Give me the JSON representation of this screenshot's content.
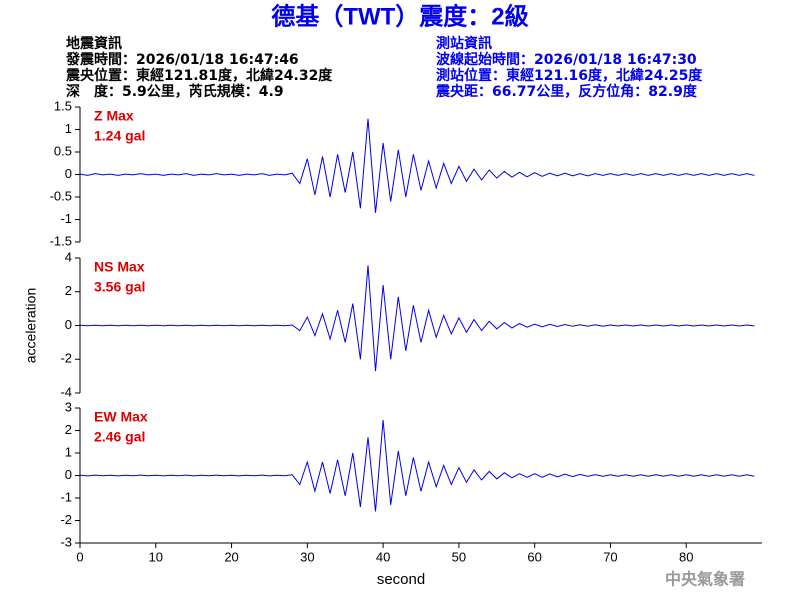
{
  "header": {
    "title": "德基（TWT）震度：2級",
    "event": [
      "地震資訊",
      "發震時間：2026/01/18 16:47:46",
      "震央位置：東經121.81度，北緯24.32度",
      "深　度：5.9公里，芮氏規模：4.9"
    ],
    "station": [
      "測站資訊",
      "波線起始時間：2026/01/18 16:47:30",
      "測站位置：東經121.16度，北緯24.25度",
      "震央距：66.77公里，反方位角：82.9度"
    ],
    "footer": "中央氣象署"
  },
  "chart_data": [
    {
      "type": "line",
      "color": "#0000ee",
      "annotations": [
        "Z Max",
        "1.24 gal"
      ],
      "ylim": [
        -1.5,
        1.5
      ],
      "yticks": [
        -1.5,
        -1,
        -0.5,
        0,
        0.5,
        1,
        1.5
      ],
      "xlim": [
        0,
        90
      ],
      "x": [
        0,
        1,
        2,
        3,
        4,
        5,
        6,
        7,
        8,
        9,
        10,
        11,
        12,
        13,
        14,
        15,
        16,
        17,
        18,
        19,
        20,
        21,
        22,
        23,
        24,
        25,
        26,
        27,
        28,
        29,
        30,
        31,
        32,
        33,
        34,
        35,
        36,
        37,
        38,
        39,
        40,
        41,
        42,
        43,
        44,
        45,
        46,
        47,
        48,
        49,
        50,
        51,
        52,
        53,
        54,
        55,
        56,
        57,
        58,
        59,
        60,
        61,
        62,
        63,
        64,
        65,
        66,
        67,
        68,
        69,
        70,
        71,
        72,
        73,
        74,
        75,
        76,
        77,
        78,
        79,
        80,
        81,
        82,
        83,
        84,
        85,
        86,
        87,
        88,
        89
      ],
      "values": [
        0.01,
        -0.02,
        0.02,
        -0.01,
        0.01,
        -0.02,
        0.01,
        -0.01,
        0.02,
        -0.01,
        0.01,
        -0.02,
        0.01,
        -0.01,
        0.02,
        -0.02,
        0.01,
        -0.01,
        0.02,
        -0.01,
        0.01,
        -0.02,
        0.01,
        -0.01,
        0.02,
        -0.02,
        0.01,
        -0.01,
        0.03,
        -0.2,
        0.35,
        -0.45,
        0.4,
        -0.5,
        0.45,
        -0.4,
        0.5,
        -0.75,
        1.24,
        -0.85,
        0.7,
        -0.6,
        0.55,
        -0.5,
        0.45,
        -0.35,
        0.3,
        -0.3,
        0.25,
        -0.2,
        0.18,
        -0.15,
        0.12,
        -0.12,
        0.1,
        -0.08,
        0.07,
        -0.06,
        0.05,
        -0.05,
        0.04,
        -0.04,
        0.03,
        -0.03,
        0.03,
        -0.03,
        0.02,
        -0.03,
        0.02,
        -0.02,
        0.02,
        -0.02,
        0.02,
        -0.02,
        0.02,
        -0.02,
        0.02,
        -0.02,
        0.02,
        -0.02,
        0.02,
        -0.02,
        0.02,
        -0.02,
        0.02,
        -0.02,
        0.02,
        -0.02,
        0.02,
        -0.02
      ]
    },
    {
      "type": "line",
      "color": "#0000ee",
      "annotations": [
        "NS Max",
        "3.56 gal"
      ],
      "ylabel": "acceleration",
      "ylim": [
        -4,
        4
      ],
      "yticks": [
        -4,
        -2,
        0,
        2,
        4
      ],
      "xlim": [
        0,
        90
      ],
      "x": [
        0,
        1,
        2,
        3,
        4,
        5,
        6,
        7,
        8,
        9,
        10,
        11,
        12,
        13,
        14,
        15,
        16,
        17,
        18,
        19,
        20,
        21,
        22,
        23,
        24,
        25,
        26,
        27,
        28,
        29,
        30,
        31,
        32,
        33,
        34,
        35,
        36,
        37,
        38,
        39,
        40,
        41,
        42,
        43,
        44,
        45,
        46,
        47,
        48,
        49,
        50,
        51,
        52,
        53,
        54,
        55,
        56,
        57,
        58,
        59,
        60,
        61,
        62,
        63,
        64,
        65,
        66,
        67,
        68,
        69,
        70,
        71,
        72,
        73,
        74,
        75,
        76,
        77,
        78,
        79,
        80,
        81,
        82,
        83,
        84,
        85,
        86,
        87,
        88,
        89
      ],
      "values": [
        0.01,
        -0.02,
        0.02,
        -0.01,
        0.01,
        -0.02,
        0.01,
        -0.01,
        0.02,
        -0.01,
        0.01,
        -0.02,
        0.01,
        -0.01,
        0.02,
        -0.02,
        0.01,
        -0.01,
        0.02,
        -0.01,
        0.01,
        -0.02,
        0.01,
        -0.01,
        0.02,
        -0.02,
        0.01,
        -0.01,
        0.03,
        -0.3,
        0.5,
        -0.6,
        0.7,
        -0.8,
        0.9,
        -1.0,
        1.3,
        -2.0,
        3.56,
        -2.7,
        2.4,
        -2.0,
        1.7,
        -1.5,
        1.2,
        -1.0,
        0.9,
        -0.7,
        0.6,
        -0.5,
        0.45,
        -0.4,
        0.35,
        -0.3,
        0.25,
        -0.2,
        0.18,
        -0.15,
        0.12,
        -0.1,
        0.08,
        -0.08,
        0.07,
        -0.06,
        0.06,
        -0.05,
        0.05,
        -0.04,
        0.04,
        -0.04,
        0.03,
        -0.03,
        0.03,
        -0.03,
        0.03,
        -0.03,
        0.03,
        -0.03,
        0.03,
        -0.03,
        0.03,
        -0.03,
        0.03,
        -0.03,
        0.03,
        -0.03,
        0.03,
        -0.03,
        0.03,
        -0.03
      ]
    },
    {
      "type": "line",
      "color": "#0000ee",
      "annotations": [
        "EW Max",
        "2.46 gal"
      ],
      "xlabel": "second",
      "ylim": [
        -3,
        3
      ],
      "yticks": [
        -3,
        -2,
        -1,
        0,
        1,
        2,
        3
      ],
      "xlim": [
        0,
        90
      ],
      "xticks": [
        0,
        10,
        20,
        30,
        40,
        50,
        60,
        70,
        80
      ],
      "x": [
        0,
        1,
        2,
        3,
        4,
        5,
        6,
        7,
        8,
        9,
        10,
        11,
        12,
        13,
        14,
        15,
        16,
        17,
        18,
        19,
        20,
        21,
        22,
        23,
        24,
        25,
        26,
        27,
        28,
        29,
        30,
        31,
        32,
        33,
        34,
        35,
        36,
        37,
        38,
        39,
        40,
        41,
        42,
        43,
        44,
        45,
        46,
        47,
        48,
        49,
        50,
        51,
        52,
        53,
        54,
        55,
        56,
        57,
        58,
        59,
        60,
        61,
        62,
        63,
        64,
        65,
        66,
        67,
        68,
        69,
        70,
        71,
        72,
        73,
        74,
        75,
        76,
        77,
        78,
        79,
        80,
        81,
        82,
        83,
        84,
        85,
        86,
        87,
        88,
        89
      ],
      "values": [
        0.01,
        -0.02,
        0.02,
        -0.01,
        0.01,
        -0.02,
        0.01,
        -0.01,
        0.02,
        -0.01,
        0.01,
        -0.02,
        0.01,
        -0.01,
        0.02,
        -0.02,
        0.01,
        -0.01,
        0.02,
        -0.01,
        0.01,
        -0.02,
        0.01,
        -0.01,
        0.02,
        -0.02,
        0.01,
        -0.01,
        0.03,
        -0.4,
        0.6,
        -0.7,
        0.6,
        -0.8,
        0.7,
        -0.9,
        1.0,
        -1.4,
        1.7,
        -1.6,
        2.46,
        -1.3,
        1.1,
        -0.9,
        0.8,
        -0.7,
        0.6,
        -0.5,
        0.45,
        -0.4,
        0.35,
        -0.3,
        0.25,
        -0.2,
        0.18,
        -0.15,
        0.12,
        -0.1,
        0.08,
        -0.08,
        0.08,
        -0.08,
        0.07,
        -0.06,
        0.06,
        -0.05,
        0.05,
        -0.04,
        0.04,
        -0.04,
        0.03,
        -0.03,
        0.03,
        -0.03,
        0.03,
        -0.03,
        0.03,
        -0.03,
        0.03,
        -0.03,
        0.03,
        -0.03,
        0.03,
        -0.03,
        0.03,
        -0.03,
        0.03,
        -0.03,
        0.03,
        -0.03
      ]
    }
  ]
}
